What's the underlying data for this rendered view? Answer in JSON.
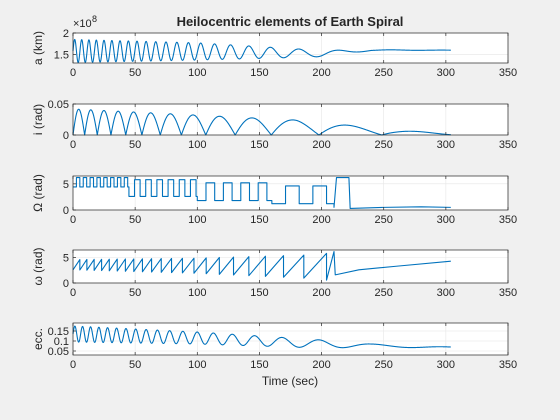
{
  "figure": {
    "title": "Heilocentric elements of Earth Spiral",
    "xlabel": "Time (sec)"
  },
  "colors": {
    "line": "#0072bd",
    "axes_bg": "#ffffff",
    "figure_bg": "#f0f0f0",
    "axis": "#262626",
    "grid": "#e6e6e6"
  },
  "chart_data": [
    {
      "type": "line",
      "ylabel": "a (km)",
      "exponent_label": "×10",
      "exponent_power": "8",
      "xlim": [
        0,
        350
      ],
      "ylim": [
        1.3,
        2.0
      ],
      "xticks": [
        "0",
        "50",
        "100",
        "150",
        "200",
        "250",
        "300",
        "350"
      ],
      "yticks": [
        "1.5",
        "2"
      ],
      "ytick_values": [
        1.5,
        2.0
      ],
      "grid": true,
      "signal": {
        "kind": "oscillation",
        "x_end": 304,
        "base": [
          [
            0,
            1.58
          ],
          [
            100,
            1.57
          ],
          [
            200,
            1.52
          ],
          [
            240,
            1.6
          ],
          [
            304,
            1.6
          ]
        ],
        "amp": [
          [
            0,
            0.27
          ],
          [
            100,
            0.2
          ],
          [
            180,
            0.1
          ],
          [
            215,
            0.05
          ],
          [
            240,
            0.01
          ],
          [
            304,
            0.0
          ]
        ],
        "period": [
          [
            0,
            5.5
          ],
          [
            50,
            7
          ],
          [
            100,
            10
          ],
          [
            150,
            17
          ],
          [
            200,
            32
          ],
          [
            230,
            45
          ]
        ],
        "floor": 1.3
      }
    },
    {
      "type": "line",
      "ylabel": "i (rad)",
      "xlim": [
        0,
        350
      ],
      "ylim": [
        0,
        0.05
      ],
      "xticks": [
        "0",
        "50",
        "100",
        "150",
        "200",
        "250",
        "300",
        "350"
      ],
      "yticks": [
        "0",
        "0.05"
      ],
      "ytick_values": [
        0,
        0.05
      ],
      "grid": true,
      "signal": {
        "kind": "abs-sine",
        "x_end": 304,
        "amp": [
          [
            0,
            0.042
          ],
          [
            60,
            0.036
          ],
          [
            120,
            0.03
          ],
          [
            180,
            0.024
          ],
          [
            220,
            0.016
          ],
          [
            260,
            0.008
          ],
          [
            304,
            0.002
          ]
        ],
        "period": [
          [
            0,
            9
          ],
          [
            50,
            13
          ],
          [
            100,
            20
          ],
          [
            150,
            30
          ],
          [
            200,
            45
          ],
          [
            260,
            60
          ]
        ]
      }
    },
    {
      "type": "line",
      "ylabel": "Ω (rad)",
      "xlim": [
        0,
        350
      ],
      "ylim": [
        0,
        6.5
      ],
      "xticks": [
        "0",
        "50",
        "100",
        "150",
        "200",
        "250",
        "300",
        "350"
      ],
      "yticks": [
        "0",
        "5"
      ],
      "ytick_values": [
        0,
        5
      ],
      "grid": true,
      "signal": {
        "kind": "square",
        "x_end": 304,
        "segments": [
          [
            0,
            45,
            4.4,
            6.2,
            5.5
          ],
          [
            45,
            100,
            2.6,
            5.8,
            9
          ],
          [
            100,
            160,
            1.8,
            5.2,
            14
          ],
          [
            160,
            210,
            1.2,
            4.6,
            22
          ]
        ],
        "tail": [
          [
            210,
            0.5
          ],
          [
            212,
            6.2
          ],
          [
            222,
            6.2
          ],
          [
            223,
            0.3
          ],
          [
            250,
            0.5
          ],
          [
            280,
            0.6
          ],
          [
            304,
            0.5
          ]
        ]
      }
    },
    {
      "type": "line",
      "ylabel": "ω (rad)",
      "xlim": [
        0,
        350
      ],
      "ylim": [
        0,
        6.5
      ],
      "xticks": [
        "0",
        "50",
        "100",
        "150",
        "200",
        "250",
        "300",
        "350"
      ],
      "yticks": [
        "0",
        "5"
      ],
      "ytick_values": [
        0,
        5
      ],
      "grid": true,
      "signal": {
        "kind": "sawtooth",
        "x_end": 304,
        "low": [
          [
            0,
            2.6
          ],
          [
            100,
            1.9
          ],
          [
            200,
            0.8
          ],
          [
            210,
            0.2
          ]
        ],
        "high": [
          [
            0,
            4.6
          ],
          [
            100,
            4.9
          ],
          [
            200,
            5.6
          ],
          [
            210,
            6.2
          ]
        ],
        "period": [
          [
            0,
            5.5
          ],
          [
            50,
            7
          ],
          [
            100,
            10
          ],
          [
            150,
            14
          ],
          [
            200,
            20
          ]
        ],
        "sawtooth_end": 210,
        "tail": [
          [
            210,
            6.2
          ],
          [
            211,
            1.6
          ],
          [
            230,
            2.6
          ],
          [
            260,
            3.3
          ],
          [
            304,
            4.3
          ]
        ]
      }
    },
    {
      "type": "line",
      "ylabel": "ecc.",
      "xlim": [
        0,
        350
      ],
      "ylim": [
        0.03,
        0.19
      ],
      "xticks": [
        "0",
        "50",
        "100",
        "150",
        "200",
        "250",
        "300",
        "350"
      ],
      "yticks": [
        "0.05",
        "0.1",
        "0.15"
      ],
      "ytick_values": [
        0.05,
        0.1,
        0.15
      ],
      "grid": true,
      "signal": {
        "kind": "oscillation",
        "x_end": 304,
        "base": [
          [
            0,
            0.135
          ],
          [
            100,
            0.115
          ],
          [
            200,
            0.085
          ],
          [
            250,
            0.075
          ],
          [
            304,
            0.068
          ]
        ],
        "amp": [
          [
            0,
            0.04
          ],
          [
            100,
            0.03
          ],
          [
            200,
            0.02
          ],
          [
            240,
            0.008
          ],
          [
            304,
            0.002
          ]
        ],
        "period": [
          [
            0,
            6
          ],
          [
            50,
            8
          ],
          [
            100,
            12
          ],
          [
            150,
            20
          ],
          [
            200,
            35
          ],
          [
            250,
            60
          ]
        ],
        "floor": 0.045
      }
    }
  ]
}
